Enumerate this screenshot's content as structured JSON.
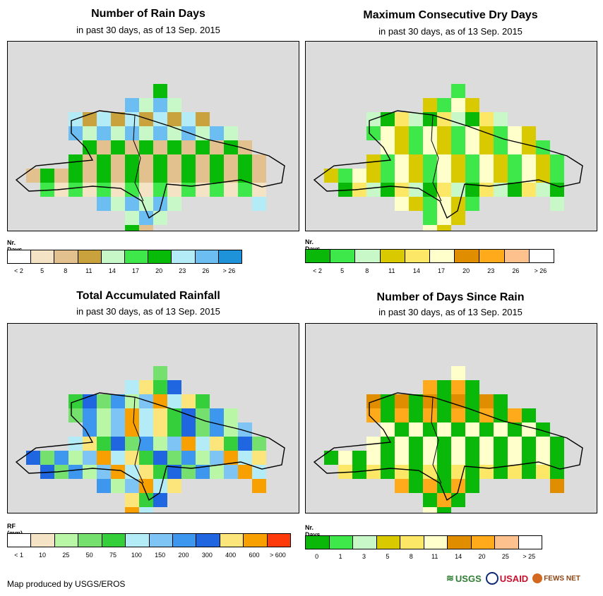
{
  "panels": [
    {
      "title": "Number of Rain Days",
      "subtitle": "in past 30 days, as of 13 Sep. 2015",
      "legend_title": "Nr. Days",
      "legend_colors": [
        "#ffffff",
        "#f5e3c6",
        "#e3c18f",
        "#c9a13d",
        "#c8f7c8",
        "#3ee84a",
        "#09bb09",
        "#b3ebf7",
        "#6cbdf2",
        "#1f93d9"
      ],
      "legend_labels": [
        "< 2",
        "5",
        "8",
        "11",
        "14",
        "17",
        "20",
        "23",
        "26",
        "> 26"
      ],
      "fill_classes": [
        1,
        2,
        3,
        4,
        5,
        6,
        7,
        8
      ]
    },
    {
      "title": "Maximum Consecutive Dry Days",
      "subtitle": "in past 30 days, as of 13 Sep. 2015",
      "legend_title": "Nr. Days",
      "legend_colors": [
        "#0ab80a",
        "#3ee84a",
        "#c8f7c8",
        "#d9c900",
        "#fce866",
        "#ffffcc",
        "#e08d00",
        "#ffaa1a",
        "#fdc18d",
        "#ffffff"
      ],
      "legend_labels": [
        "< 2",
        "5",
        "8",
        "11",
        "14",
        "17",
        "20",
        "23",
        "26",
        "> 26"
      ],
      "fill_classes": [
        0,
        1,
        2,
        3,
        4,
        5
      ]
    },
    {
      "title": "Total Accumulated Rainfall",
      "subtitle": "in past 30 days, as of 13 Sep. 2015",
      "legend_title": "RF (mm)",
      "legend_colors": [
        "#ffffff",
        "#f5e3c6",
        "#b9f7a6",
        "#76e06e",
        "#34cf3a",
        "#b3ebf7",
        "#7ec4f5",
        "#3e97ef",
        "#1f66e0",
        "#fce57a",
        "#f7a000",
        "#ff3a0a"
      ],
      "legend_labels": [
        "< 1",
        "10",
        "25",
        "50",
        "75",
        "100",
        "150",
        "200",
        "300",
        "400",
        "600",
        "> 600"
      ],
      "fill_classes": [
        2,
        3,
        4,
        5,
        6,
        7,
        8,
        9,
        10
      ]
    },
    {
      "title": "Number of Days Since Rain",
      "subtitle": "in past 30 days, as of 13 Sep. 2015",
      "legend_title": "Nr. Days",
      "legend_colors": [
        "#0ab80a",
        "#3ee84a",
        "#c8f7c8",
        "#d9c900",
        "#fce866",
        "#ffffcc",
        "#e08d00",
        "#ffaa1a",
        "#fdc18d",
        "#ffffff"
      ],
      "legend_labels": [
        "0",
        "1",
        "3",
        "5",
        "8",
        "11",
        "14",
        "20",
        "25",
        "> 25"
      ],
      "fill_classes": [
        0,
        0,
        0,
        0,
        4,
        5,
        6,
        7
      ]
    }
  ],
  "footer": {
    "credit": "Map produced by USGS/EROS"
  },
  "logos": {
    "usgs": "USGS",
    "usaid": "USAID",
    "fews": "FEWS NET"
  }
}
